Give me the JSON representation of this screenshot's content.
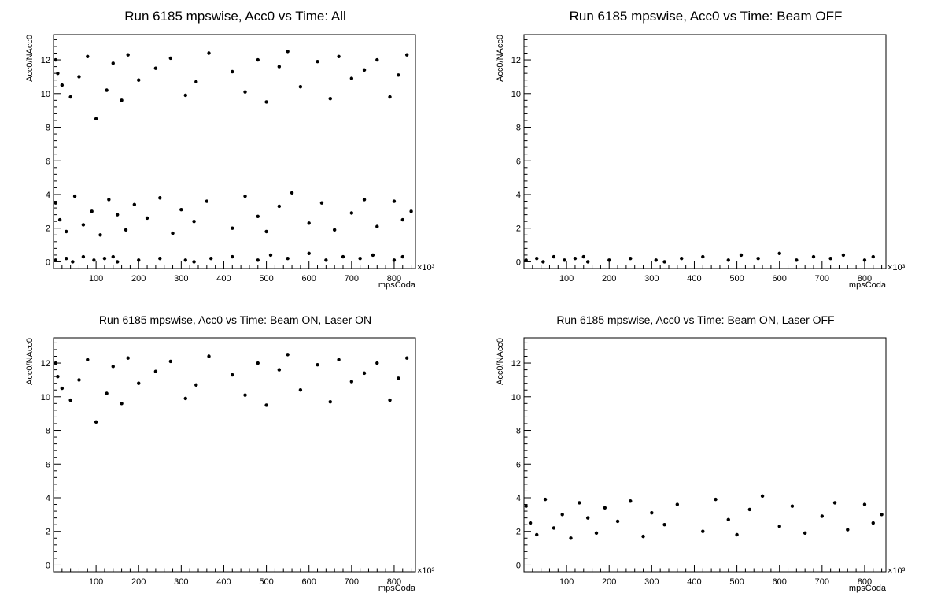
{
  "chart_data": [
    {
      "type": "scatter",
      "title": "Run 6185 mpswise, Acc0 vs Time: All",
      "xlabel": "mpsCoda",
      "ylabel": "Acc0/NAcc0",
      "x_exponent_label": "×10³",
      "xlim": [
        0,
        850
      ],
      "ylim": [
        -0.4,
        13.5
      ],
      "x_ticks": [
        100,
        200,
        300,
        400,
        500,
        600,
        700,
        800
      ],
      "y_ticks": [
        0,
        2,
        4,
        6,
        8,
        10,
        12
      ],
      "grid": false,
      "legend": "none",
      "series": [
        {
          "x": [
            5,
            10,
            20,
            40,
            60,
            80,
            100,
            125,
            140,
            160,
            175,
            200,
            240,
            275,
            310,
            335,
            365,
            420,
            450,
            480,
            500,
            530,
            550,
            580,
            620,
            650,
            670,
            700,
            730,
            760,
            790,
            810,
            830
          ],
          "values": [
            12.0,
            11.2,
            10.5,
            9.8,
            11.0,
            12.2,
            8.5,
            10.2,
            11.8,
            9.6,
            12.3,
            10.8,
            11.5,
            12.1,
            9.9,
            10.7,
            12.4,
            11.3,
            10.1,
            12.0,
            9.5,
            11.6,
            12.5,
            10.4,
            11.9,
            9.7,
            12.2,
            10.9,
            11.4,
            12.0,
            9.8,
            11.1,
            12.3
          ]
        },
        {
          "x": [
            5,
            15,
            30,
            50,
            70,
            90,
            110,
            130,
            150,
            170,
            190,
            220,
            250,
            280,
            300,
            330,
            360,
            420,
            450,
            480,
            500,
            530,
            560,
            600,
            630,
            660,
            700,
            730,
            760,
            800,
            820,
            840
          ],
          "values": [
            3.5,
            2.5,
            1.8,
            3.9,
            2.2,
            3.0,
            1.6,
            3.7,
            2.8,
            1.9,
            3.4,
            2.6,
            3.8,
            1.7,
            3.1,
            2.4,
            3.6,
            2.0,
            3.9,
            2.7,
            1.8,
            3.3,
            4.1,
            2.3,
            3.5,
            1.9,
            2.9,
            3.7,
            2.1,
            3.6,
            2.5,
            3.0
          ]
        },
        {
          "x": [
            5,
            30,
            45,
            70,
            95,
            120,
            140,
            150,
            200,
            250,
            310,
            330,
            370,
            420,
            480,
            510,
            550,
            600,
            640,
            680,
            720,
            750,
            800,
            820
          ],
          "values": [
            0.1,
            0.2,
            0.0,
            0.3,
            0.1,
            0.2,
            0.3,
            0.0,
            0.1,
            0.2,
            0.1,
            0.0,
            0.2,
            0.3,
            0.1,
            0.4,
            0.2,
            0.5,
            0.1,
            0.3,
            0.2,
            0.4,
            0.1,
            0.3
          ]
        }
      ]
    },
    {
      "type": "scatter",
      "title": "Run 6185 mpswise, Acc0 vs Time: Beam OFF",
      "xlabel": "mpsCoda",
      "ylabel": "Acc0/NAcc0",
      "x_exponent_label": "×10³",
      "xlim": [
        0,
        850
      ],
      "ylim": [
        -0.4,
        13.5
      ],
      "x_ticks": [
        100,
        200,
        300,
        400,
        500,
        600,
        700,
        800
      ],
      "y_ticks": [
        0,
        2,
        4,
        6,
        8,
        10,
        12
      ],
      "grid": false,
      "legend": "none",
      "series": [
        {
          "x": [
            5,
            30,
            45,
            70,
            95,
            120,
            140,
            150,
            200,
            250,
            310,
            330,
            370,
            420,
            480,
            510,
            550,
            600,
            640,
            680,
            720,
            750,
            800,
            820
          ],
          "values": [
            0.1,
            0.2,
            0.0,
            0.3,
            0.1,
            0.2,
            0.3,
            0.0,
            0.1,
            0.2,
            0.1,
            0.0,
            0.2,
            0.3,
            0.1,
            0.4,
            0.2,
            0.5,
            0.1,
            0.3,
            0.2,
            0.4,
            0.1,
            0.3
          ]
        }
      ]
    },
    {
      "type": "scatter",
      "title": "Run 6185 mpswise, Acc0 vs Time: Beam ON, Laser ON",
      "xlabel": "mpsCoda",
      "ylabel": "Acc0/NAcc0",
      "x_exponent_label": "×10³",
      "xlim": [
        0,
        850
      ],
      "ylim": [
        -0.4,
        13.5
      ],
      "x_ticks": [
        100,
        200,
        300,
        400,
        500,
        600,
        700,
        800
      ],
      "y_ticks": [
        0,
        2,
        4,
        6,
        8,
        10,
        12
      ],
      "grid": false,
      "legend": "none",
      "series": [
        {
          "x": [
            5,
            10,
            20,
            40,
            60,
            80,
            100,
            125,
            140,
            160,
            175,
            200,
            240,
            275,
            310,
            335,
            365,
            420,
            450,
            480,
            500,
            530,
            550,
            580,
            620,
            650,
            670,
            700,
            730,
            760,
            790,
            810,
            830
          ],
          "values": [
            12.0,
            11.2,
            10.5,
            9.8,
            11.0,
            12.2,
            8.5,
            10.2,
            11.8,
            9.6,
            12.3,
            10.8,
            11.5,
            12.1,
            9.9,
            10.7,
            12.4,
            11.3,
            10.1,
            12.0,
            9.5,
            11.6,
            12.5,
            10.4,
            11.9,
            9.7,
            12.2,
            10.9,
            11.4,
            12.0,
            9.8,
            11.1,
            12.3
          ]
        }
      ]
    },
    {
      "type": "scatter",
      "title": "Run 6185 mpswise, Acc0 vs Time: Beam ON, Laser OFF",
      "xlabel": "mpsCoda",
      "ylabel": "Acc0/NAcc0",
      "x_exponent_label": "×10³",
      "xlim": [
        0,
        850
      ],
      "ylim": [
        -0.4,
        13.5
      ],
      "x_ticks": [
        100,
        200,
        300,
        400,
        500,
        600,
        700,
        800
      ],
      "y_ticks": [
        0,
        2,
        4,
        6,
        8,
        10,
        12
      ],
      "grid": false,
      "legend": "none",
      "series": [
        {
          "x": [
            5,
            15,
            30,
            50,
            70,
            90,
            110,
            130,
            150,
            170,
            190,
            220,
            250,
            280,
            300,
            330,
            360,
            420,
            450,
            480,
            500,
            530,
            560,
            600,
            630,
            660,
            700,
            730,
            760,
            800,
            820,
            840
          ],
          "values": [
            3.5,
            2.5,
            1.8,
            3.9,
            2.2,
            3.0,
            1.6,
            3.7,
            2.8,
            1.9,
            3.4,
            2.6,
            3.8,
            1.7,
            3.1,
            2.4,
            3.6,
            2.0,
            3.9,
            2.7,
            1.8,
            3.3,
            4.1,
            2.3,
            3.5,
            1.9,
            2.9,
            3.7,
            2.1,
            3.6,
            2.5,
            3.0
          ]
        }
      ]
    }
  ]
}
